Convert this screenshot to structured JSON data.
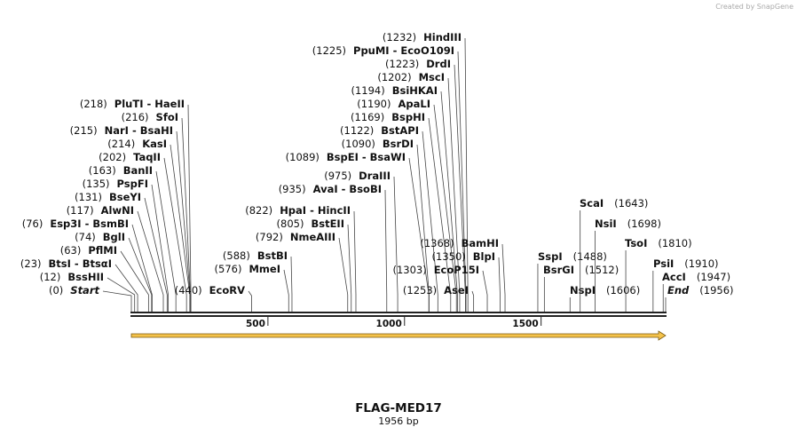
{
  "credit": "Created by SnapGene",
  "title": "FLAG-MED17",
  "subtitle": "1956 bp",
  "length": 1956,
  "ticks": [
    500,
    1000,
    1500
  ],
  "sites": [
    {
      "name": "Start",
      "position": {
        "value": 0,
        "label": "(0)"
      }
    },
    {
      "name": "BssHII",
      "position": {
        "value": 12,
        "label": "(12)"
      }
    },
    {
      "name": "BtsI  - BtsαI",
      "position": {
        "value": 23,
        "label": "(23)"
      }
    },
    {
      "name": "PflMI",
      "position": {
        "value": 63,
        "label": "(63)"
      }
    },
    {
      "name": "BglI",
      "position": {
        "value": 74,
        "label": "(74)"
      }
    },
    {
      "name": "Esp3I  - BsmBI",
      "position": {
        "value": 76,
        "label": "(76)"
      }
    },
    {
      "name": "AlwNI",
      "position": {
        "value": 117,
        "label": "(117)"
      }
    },
    {
      "name": "BseYI",
      "position": {
        "value": 131,
        "label": "(131)"
      }
    },
    {
      "name": "PspFI",
      "position": {
        "value": 135,
        "label": "(135)"
      }
    },
    {
      "name": "BanII",
      "position": {
        "value": 163,
        "label": "(163)"
      }
    },
    {
      "name": "TaqII",
      "position": {
        "value": 202,
        "label": "(202)"
      }
    },
    {
      "name": "KasI",
      "position": {
        "value": 214,
        "label": "(214)"
      }
    },
    {
      "name": "NarI  - BsaHI",
      "position": {
        "value": 215,
        "label": "(215)"
      }
    },
    {
      "name": "SfoI",
      "position": {
        "value": 216,
        "label": "(216)"
      }
    },
    {
      "name": "PluTI  - HaeII",
      "position": {
        "value": 218,
        "label": "(218)"
      }
    },
    {
      "name": "EcoRV",
      "position": {
        "value": 440,
        "label": "(440)"
      }
    },
    {
      "name": "MmeI",
      "position": {
        "value": 576,
        "label": "(576)"
      }
    },
    {
      "name": "BstBI",
      "position": {
        "value": 588,
        "label": "(588)"
      }
    },
    {
      "name": "NmeAIII",
      "position": {
        "value": 792,
        "label": "(792)"
      }
    },
    {
      "name": "BstEII",
      "position": {
        "value": 805,
        "label": "(805)"
      }
    },
    {
      "name": "HpaI  - HincII",
      "position": {
        "value": 822,
        "label": "(822)"
      }
    },
    {
      "name": "AvaI  - BsoBI",
      "position": {
        "value": 935,
        "label": "(935)"
      }
    },
    {
      "name": "DraIII",
      "position": {
        "value": 975,
        "label": "(975)"
      }
    },
    {
      "name": "BspEI  - BsaWI",
      "position": {
        "value": 1089,
        "label": "(1089)"
      }
    },
    {
      "name": "BsrDI",
      "position": {
        "value": 1090,
        "label": "(1090)"
      }
    },
    {
      "name": "BstAPI",
      "position": {
        "value": 1122,
        "label": "(1122)"
      }
    },
    {
      "name": "BspHI",
      "position": {
        "value": 1169,
        "label": "(1169)"
      }
    },
    {
      "name": "ApaLI",
      "position": {
        "value": 1190,
        "label": "(1190)"
      }
    },
    {
      "name": "BsiHKAI",
      "position": {
        "value": 1194,
        "label": "(1194)"
      }
    },
    {
      "name": "MscI",
      "position": {
        "value": 1202,
        "label": "(1202)"
      }
    },
    {
      "name": "DrdI",
      "position": {
        "value": 1223,
        "label": "(1223)"
      }
    },
    {
      "name": "PpuMI  - EcoO109I",
      "position": {
        "value": 1225,
        "label": "(1225)"
      }
    },
    {
      "name": "HindIII",
      "position": {
        "value": 1232,
        "label": "(1232)"
      }
    },
    {
      "name": "AseI",
      "position": {
        "value": 1253,
        "label": "(1253)"
      }
    },
    {
      "name": "EcoP15I",
      "position": {
        "value": 1303,
        "label": "(1303)"
      }
    },
    {
      "name": "BlpI",
      "position": {
        "value": 1350,
        "label": "(1350)"
      }
    },
    {
      "name": "BamHI",
      "position": {
        "value": 1368,
        "label": "(1368)"
      }
    },
    {
      "name": "SspI",
      "position": {
        "value": 1488,
        "label": "(1488)"
      }
    },
    {
      "name": "BsrGI",
      "position": {
        "value": 1512,
        "label": "(1512)"
      }
    },
    {
      "name": "NspI",
      "position": {
        "value": 1606,
        "label": "(1606)"
      }
    },
    {
      "name": "ScaI",
      "position": {
        "value": 1643,
        "label": "(1643)"
      }
    },
    {
      "name": "NsiI",
      "position": {
        "value": 1698,
        "label": "(1698)"
      }
    },
    {
      "name": "TsoI",
      "position": {
        "value": 1810,
        "label": "(1810)"
      }
    },
    {
      "name": "PsiI",
      "position": {
        "value": 1910,
        "label": "(1910)"
      }
    },
    {
      "name": "AccI",
      "position": {
        "value": 1947,
        "label": "(1947)"
      }
    },
    {
      "name": "End",
      "position": {
        "value": 1956,
        "label": "(1956)"
      }
    }
  ]
}
